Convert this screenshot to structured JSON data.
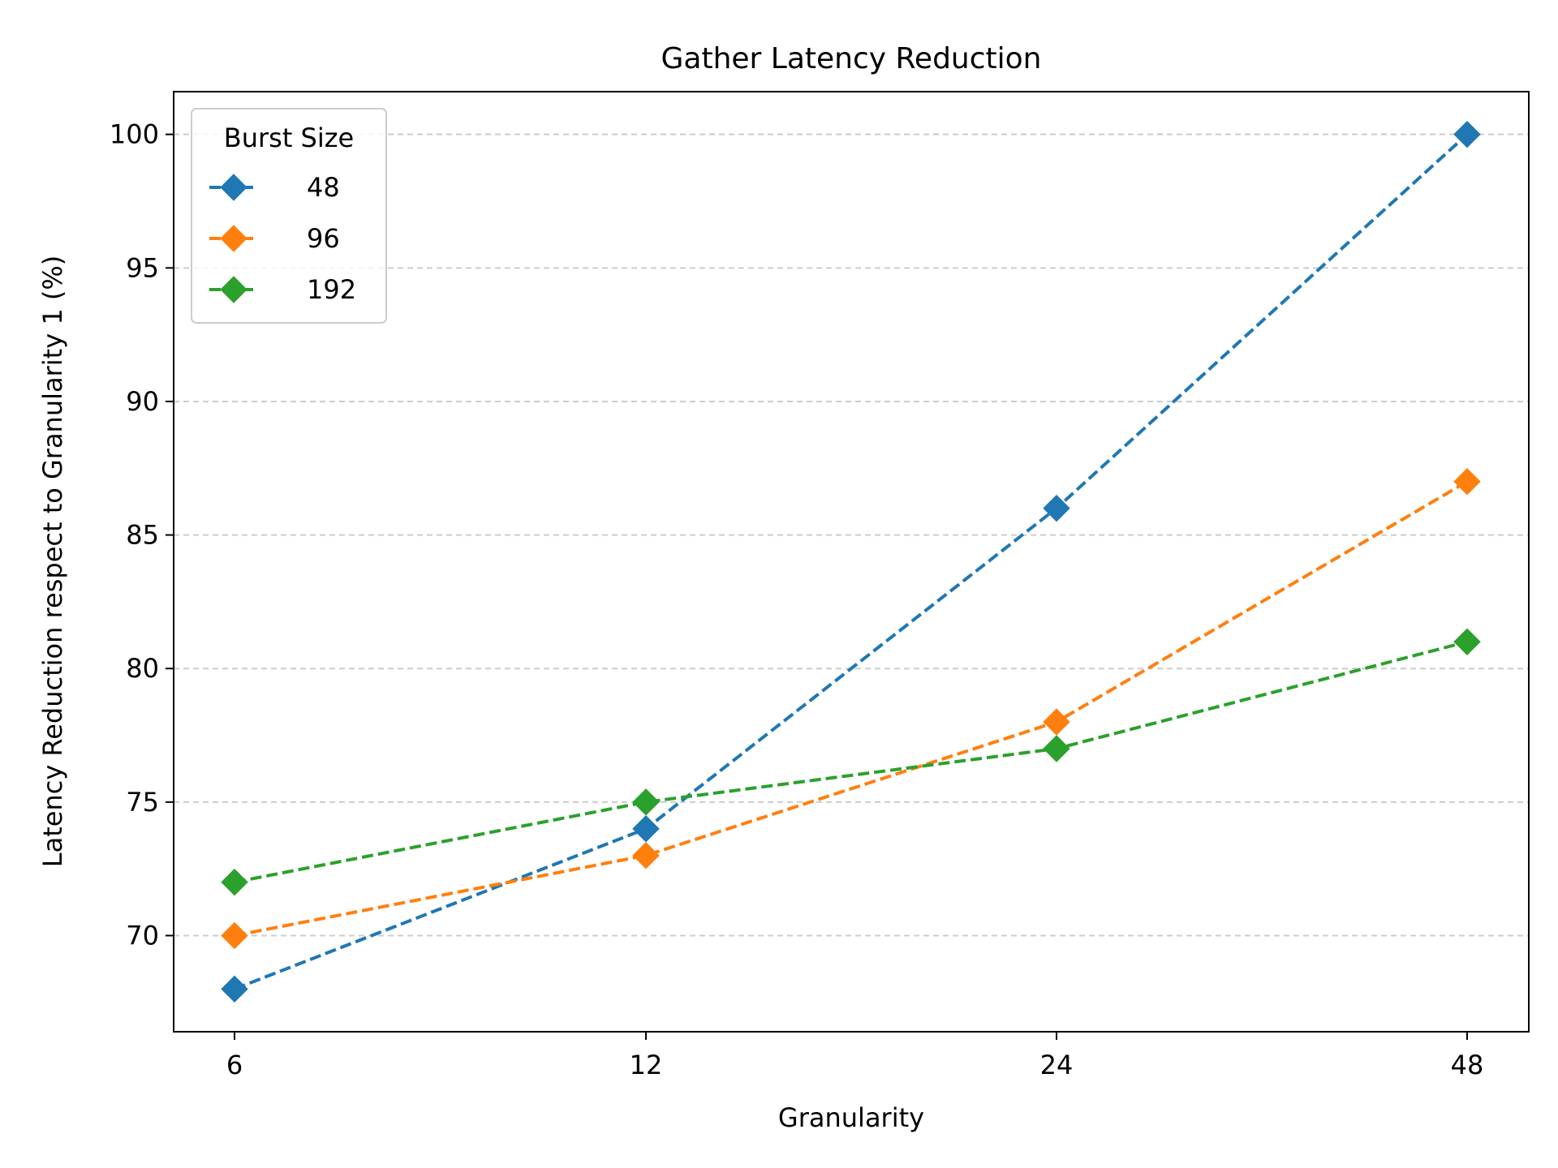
{
  "chart_data": {
    "type": "line",
    "title": "Gather Latency Reduction",
    "xlabel": "Granularity",
    "ylabel": "Latency Reduction respect to Granularity 1 (%)",
    "categories": [
      "6",
      "12",
      "24",
      "48"
    ],
    "x_scale": "categorical",
    "ylim": [
      66.4,
      101.6
    ],
    "yticks": [
      70,
      75,
      80,
      85,
      90,
      95,
      100
    ],
    "grid": "horizontal dashed",
    "legend": {
      "title": "Burst Size",
      "placement": "top-left"
    },
    "series": [
      {
        "name": "48",
        "color": "#1f77b4",
        "values": [
          68,
          74,
          86,
          100
        ]
      },
      {
        "name": "96",
        "color": "#ff7f0e",
        "values": [
          70,
          73,
          78,
          87
        ]
      },
      {
        "name": "192",
        "color": "#2ca02c",
        "values": [
          72,
          75,
          77,
          81
        ]
      }
    ],
    "line_style": "dashed",
    "marker": "diamond"
  }
}
